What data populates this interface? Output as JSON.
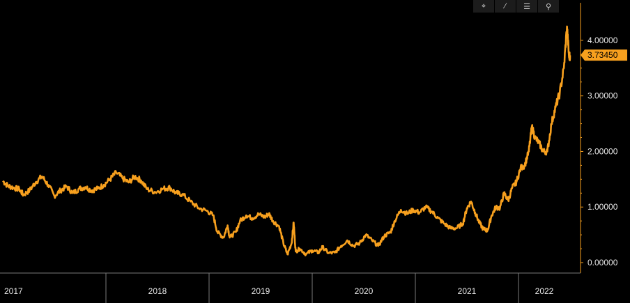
{
  "toolbar": {
    "items": [
      {
        "name": "crosshair-icon",
        "glyph": "⌖"
      },
      {
        "name": "draw-icon",
        "glyph": "∕"
      },
      {
        "name": "list-icon",
        "glyph": "☰"
      },
      {
        "name": "zoom-icon",
        "glyph": "⚲"
      }
    ]
  },
  "colors": {
    "line": "#f7a01e",
    "background": "#000000",
    "axis": "#e6e6e6"
  },
  "chart_data": {
    "type": "line",
    "title": "",
    "xlabel": "",
    "ylabel": "",
    "ylim": [
      -0.1,
      4.5
    ],
    "xlim": [
      2017.0,
      2022.5
    ],
    "grid": false,
    "y_ticks": [
      "0.00000",
      "1.00000",
      "2.00000",
      "3.00000",
      "4.00000"
    ],
    "x_ticks": [
      "2017",
      "2018",
      "2019",
      "2020",
      "2021",
      "2022"
    ],
    "last_value": "3.73450",
    "series": [
      {
        "values": [
          [
            2017.0,
            1.47
          ],
          [
            2017.05,
            1.38
          ],
          [
            2017.1,
            1.35
          ],
          [
            2017.16,
            1.32
          ],
          [
            2017.2,
            1.22
          ],
          [
            2017.26,
            1.3
          ],
          [
            2017.32,
            1.45
          ],
          [
            2017.38,
            1.55
          ],
          [
            2017.44,
            1.4
          ],
          [
            2017.5,
            1.2
          ],
          [
            2017.56,
            1.3
          ],
          [
            2017.62,
            1.37
          ],
          [
            2017.68,
            1.25
          ],
          [
            2017.74,
            1.33
          ],
          [
            2017.8,
            1.36
          ],
          [
            2017.86,
            1.3
          ],
          [
            2017.92,
            1.33
          ],
          [
            2017.98,
            1.4
          ],
          [
            2018.04,
            1.5
          ],
          [
            2018.1,
            1.62
          ],
          [
            2018.16,
            1.52
          ],
          [
            2018.22,
            1.44
          ],
          [
            2018.28,
            1.55
          ],
          [
            2018.34,
            1.48
          ],
          [
            2018.4,
            1.32
          ],
          [
            2018.48,
            1.27
          ],
          [
            2018.56,
            1.33
          ],
          [
            2018.62,
            1.35
          ],
          [
            2018.68,
            1.25
          ],
          [
            2018.74,
            1.23
          ],
          [
            2018.82,
            1.1
          ],
          [
            2018.9,
            0.98
          ],
          [
            2018.98,
            0.93
          ],
          [
            2019.04,
            0.85
          ],
          [
            2019.08,
            0.55
          ],
          [
            2019.14,
            0.45
          ],
          [
            2019.18,
            0.67
          ],
          [
            2019.2,
            0.45
          ],
          [
            2019.26,
            0.55
          ],
          [
            2019.3,
            0.75
          ],
          [
            2019.36,
            0.85
          ],
          [
            2019.42,
            0.8
          ],
          [
            2019.48,
            0.87
          ],
          [
            2019.54,
            0.82
          ],
          [
            2019.58,
            0.88
          ],
          [
            2019.62,
            0.75
          ],
          [
            2019.68,
            0.65
          ],
          [
            2019.72,
            0.35
          ],
          [
            2019.76,
            0.15
          ],
          [
            2019.8,
            0.35
          ],
          [
            2019.82,
            0.72
          ],
          [
            2019.84,
            0.2
          ],
          [
            2019.88,
            0.25
          ],
          [
            2019.94,
            0.15
          ],
          [
            2020.0,
            0.22
          ],
          [
            2020.06,
            0.18
          ],
          [
            2020.1,
            0.28
          ],
          [
            2020.16,
            0.17
          ],
          [
            2020.22,
            0.18
          ],
          [
            2020.28,
            0.3
          ],
          [
            2020.34,
            0.4
          ],
          [
            2020.4,
            0.3
          ],
          [
            2020.46,
            0.35
          ],
          [
            2020.52,
            0.5
          ],
          [
            2020.58,
            0.4
          ],
          [
            2020.64,
            0.3
          ],
          [
            2020.7,
            0.48
          ],
          [
            2020.76,
            0.55
          ],
          [
            2020.8,
            0.75
          ],
          [
            2020.86,
            0.95
          ],
          [
            2020.92,
            0.88
          ],
          [
            2020.98,
            0.95
          ],
          [
            2021.04,
            0.9
          ],
          [
            2021.1,
            1.0
          ],
          [
            2021.16,
            0.92
          ],
          [
            2021.22,
            0.8
          ],
          [
            2021.28,
            0.7
          ],
          [
            2021.34,
            0.62
          ],
          [
            2021.4,
            0.62
          ],
          [
            2021.46,
            0.7
          ],
          [
            2021.5,
            0.98
          ],
          [
            2021.54,
            1.1
          ],
          [
            2021.58,
            0.9
          ],
          [
            2021.62,
            0.72
          ],
          [
            2021.66,
            0.6
          ],
          [
            2021.7,
            0.58
          ],
          [
            2021.74,
            0.85
          ],
          [
            2021.78,
            1.0
          ],
          [
            2021.82,
            0.98
          ],
          [
            2021.86,
            1.25
          ],
          [
            2021.9,
            1.12
          ],
          [
            2021.94,
            1.35
          ],
          [
            2021.98,
            1.45
          ],
          [
            2022.02,
            1.7
          ],
          [
            2022.06,
            1.75
          ],
          [
            2022.1,
            2.0
          ],
          [
            2022.13,
            2.45
          ],
          [
            2022.16,
            2.25
          ],
          [
            2022.2,
            2.15
          ],
          [
            2022.24,
            2.0
          ],
          [
            2022.28,
            2.0
          ],
          [
            2022.32,
            2.5
          ],
          [
            2022.36,
            2.8
          ],
          [
            2022.4,
            3.05
          ],
          [
            2022.44,
            3.5
          ],
          [
            2022.47,
            4.25
          ],
          [
            2022.49,
            3.7
          ],
          [
            2022.5,
            3.73
          ]
        ]
      }
    ]
  }
}
